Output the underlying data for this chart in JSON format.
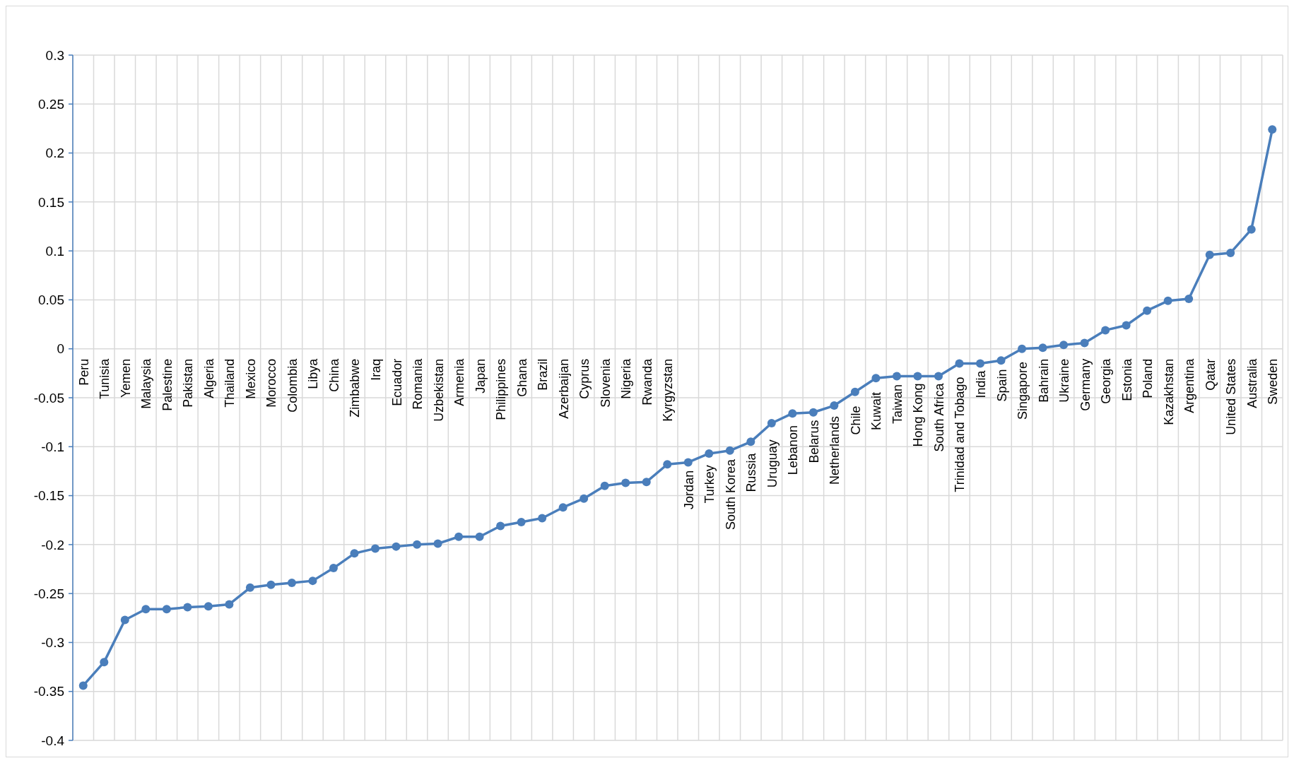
{
  "chart_data": {
    "type": "line",
    "categories": [
      "Peru",
      "Tunisia",
      "Yemen",
      "Malaysia",
      "Palestine",
      "Pakistan",
      "Algeria",
      "Thailand",
      "Mexico",
      "Morocco",
      "Colombia",
      "Libya",
      "China",
      "Zimbabwe",
      "Iraq",
      "Ecuador",
      "Romania",
      "Uzbekistan",
      "Armenia",
      "Japan",
      "Philippines",
      "Ghana",
      "Brazil",
      "Azerbaijan",
      "Cyprus",
      "Slovenia",
      "Nigeria",
      "Rwanda",
      "Kyrgyzstan",
      "Jordan",
      "Turkey",
      "South Korea",
      "Russia",
      "Uruguay",
      "Lebanon",
      "Belarus",
      "Netherlands",
      "Chile",
      "Kuwait",
      "Taiwan",
      "Hong Kong",
      "South Africa",
      "Trinidad and Tobago",
      "India",
      "Spain",
      "Singapore",
      "Bahrain",
      "Ukraine",
      "Germany",
      "Georgia",
      "Estonia",
      "Poland",
      "Kazakhstan",
      "Argentina",
      "Qatar",
      "United States",
      "Australia",
      "Sweden"
    ],
    "series": [
      {
        "color": "#4a7ebb",
        "values": [
          -0.344,
          -0.32,
          -0.277,
          -0.266,
          -0.266,
          -0.264,
          -0.263,
          -0.261,
          -0.244,
          -0.241,
          -0.239,
          -0.237,
          -0.224,
          -0.209,
          -0.204,
          -0.202,
          -0.2,
          -0.199,
          -0.192,
          -0.192,
          -0.181,
          -0.177,
          -0.173,
          -0.162,
          -0.153,
          -0.14,
          -0.137,
          -0.136,
          -0.118,
          -0.116,
          -0.107,
          -0.104,
          -0.095,
          -0.076,
          -0.066,
          -0.065,
          -0.058,
          -0.044,
          -0.03,
          -0.028,
          -0.028,
          -0.028,
          -0.015,
          -0.015,
          -0.012,
          0.0,
          0.001,
          0.004,
          0.006,
          0.019,
          0.024,
          0.039,
          0.049,
          0.051,
          0.096,
          0.098,
          0.122,
          0.224
        ]
      }
    ],
    "ylim": [
      -0.4,
      0.3
    ],
    "yticks": [
      -0.4,
      -0.35,
      -0.3,
      -0.25,
      -0.2,
      -0.15,
      -0.1,
      -0.05,
      0,
      0.05,
      0.1,
      0.15,
      0.2,
      0.25,
      0.3
    ],
    "grid": true,
    "marker": "circle",
    "line_style": "solid"
  }
}
